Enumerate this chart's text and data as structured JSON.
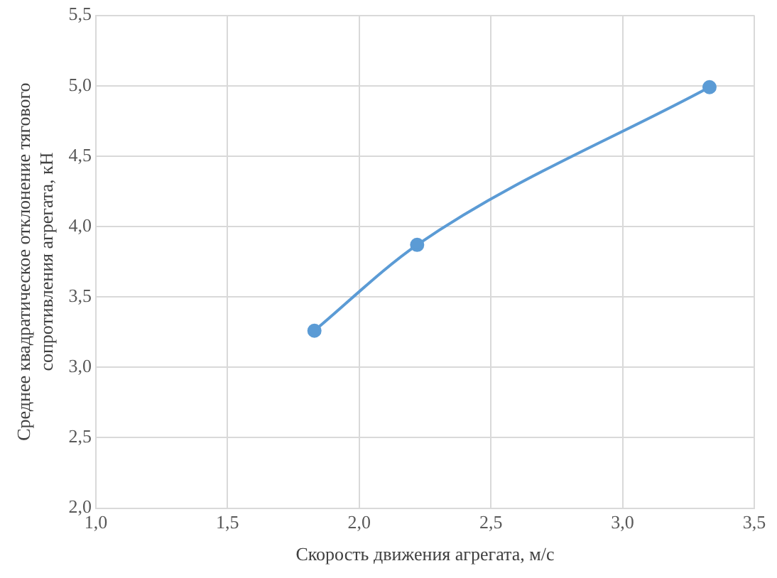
{
  "chart_data": {
    "type": "line",
    "xlabel": "Скорость движения агрегата, м/с",
    "ylabel": "Среднее квадратическое отклонение тягового сопротивления агрегата, кН",
    "x": [
      1.83,
      2.22,
      3.33
    ],
    "series": [
      {
        "color": "#5b9bd5",
        "values": [
          3.26,
          3.87,
          4.99
        ]
      }
    ],
    "xlim": [
      1.0,
      3.5
    ],
    "xticks": [
      {
        "value": 1.0,
        "label": "1,0"
      },
      {
        "value": 1.5,
        "label": "1,5"
      },
      {
        "value": 2.0,
        "label": "2,0"
      },
      {
        "value": 2.5,
        "label": "2,5"
      },
      {
        "value": 3.0,
        "label": "3,0"
      },
      {
        "value": 3.5,
        "label": "3,5"
      }
    ],
    "ylim": [
      2.0,
      5.5
    ],
    "yticks": [
      {
        "value": 2.0,
        "label": "2,0"
      },
      {
        "value": 2.5,
        "label": "2,5"
      },
      {
        "value": 3.0,
        "label": "3,0"
      },
      {
        "value": 3.5,
        "label": "3,5"
      },
      {
        "value": 4.0,
        "label": "4,0"
      },
      {
        "value": 4.5,
        "label": "4,5"
      },
      {
        "value": 5.0,
        "label": "5,0"
      },
      {
        "value": 5.5,
        "label": "5,5"
      }
    ],
    "grid": true,
    "marker": "circle",
    "line_style": "solid",
    "legend": false
  }
}
